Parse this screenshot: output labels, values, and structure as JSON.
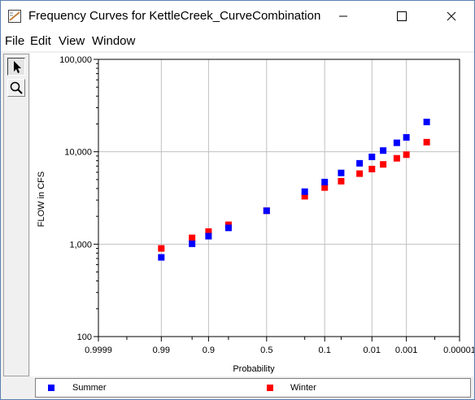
{
  "window": {
    "title": "Frequency Curves for KettleCreek_CurveCombination",
    "minimize_glyph": "—",
    "maximize_glyph": "☐",
    "close_glyph": "✕"
  },
  "menu": [
    "File",
    "Edit",
    "View",
    "Window"
  ],
  "toolbar": {
    "tools": [
      {
        "name": "pointer-icon",
        "active": true
      },
      {
        "name": "zoom-magnifier-icon",
        "active": false
      }
    ]
  },
  "colors": {
    "summer": "#0000ff",
    "winter": "#ff0000",
    "grid": "#c0c0c0"
  },
  "chart_data": {
    "type": "scatter",
    "title": "",
    "xlabel": "Probability",
    "ylabel": "FLOW in CFS",
    "y_scale": "log",
    "ylim": [
      100,
      100000
    ],
    "x_scale": "normal-probability",
    "x_reversed": true,
    "xlim": [
      0.9999,
      1e-05
    ],
    "x_ticks": [
      {
        "p": 0.9999,
        "label": "0.9999"
      },
      {
        "p": 0.99,
        "label": "0.99"
      },
      {
        "p": 0.9,
        "label": "0.9"
      },
      {
        "p": 0.5,
        "label": "0.5"
      },
      {
        "p": 0.1,
        "label": "0.1"
      },
      {
        "p": 0.01,
        "label": "0.01"
      },
      {
        "p": 0.001,
        "label": "0.001"
      },
      {
        "p": 1e-05,
        "label": "0.00001"
      }
    ],
    "x_minor": [
      0.999,
      0.95,
      0.8,
      0.2,
      0.05,
      0.0001
    ],
    "y_ticks": [
      {
        "v": 100,
        "label": "100"
      },
      {
        "v": 1000,
        "label": "1,000"
      },
      {
        "v": 10000,
        "label": "10,000"
      },
      {
        "v": 100000,
        "label": "100,000"
      }
    ],
    "grid": true,
    "legend_position": "bottom",
    "series": [
      {
        "name": "Summer",
        "color": "#0000ff",
        "points": [
          [
            0.99,
            720
          ],
          [
            0.95,
            1010
          ],
          [
            0.9,
            1220
          ],
          [
            0.8,
            1500
          ],
          [
            0.5,
            2300
          ],
          [
            0.2,
            3700
          ],
          [
            0.1,
            4700
          ],
          [
            0.05,
            5900
          ],
          [
            0.02,
            7500
          ],
          [
            0.01,
            8800
          ],
          [
            0.005,
            10300
          ],
          [
            0.002,
            12500
          ],
          [
            0.001,
            14300
          ],
          [
            0.0002,
            21000
          ]
        ]
      },
      {
        "name": "Winter",
        "color": "#ff0000",
        "points": [
          [
            0.99,
            900
          ],
          [
            0.95,
            1170
          ],
          [
            0.9,
            1370
          ],
          [
            0.8,
            1620
          ],
          [
            0.5,
            2300
          ],
          [
            0.2,
            3300
          ],
          [
            0.1,
            4100
          ],
          [
            0.05,
            4800
          ],
          [
            0.02,
            5800
          ],
          [
            0.01,
            6500
          ],
          [
            0.005,
            7300
          ],
          [
            0.002,
            8500
          ],
          [
            0.001,
            9300
          ],
          [
            0.0002,
            12700
          ]
        ]
      }
    ]
  }
}
